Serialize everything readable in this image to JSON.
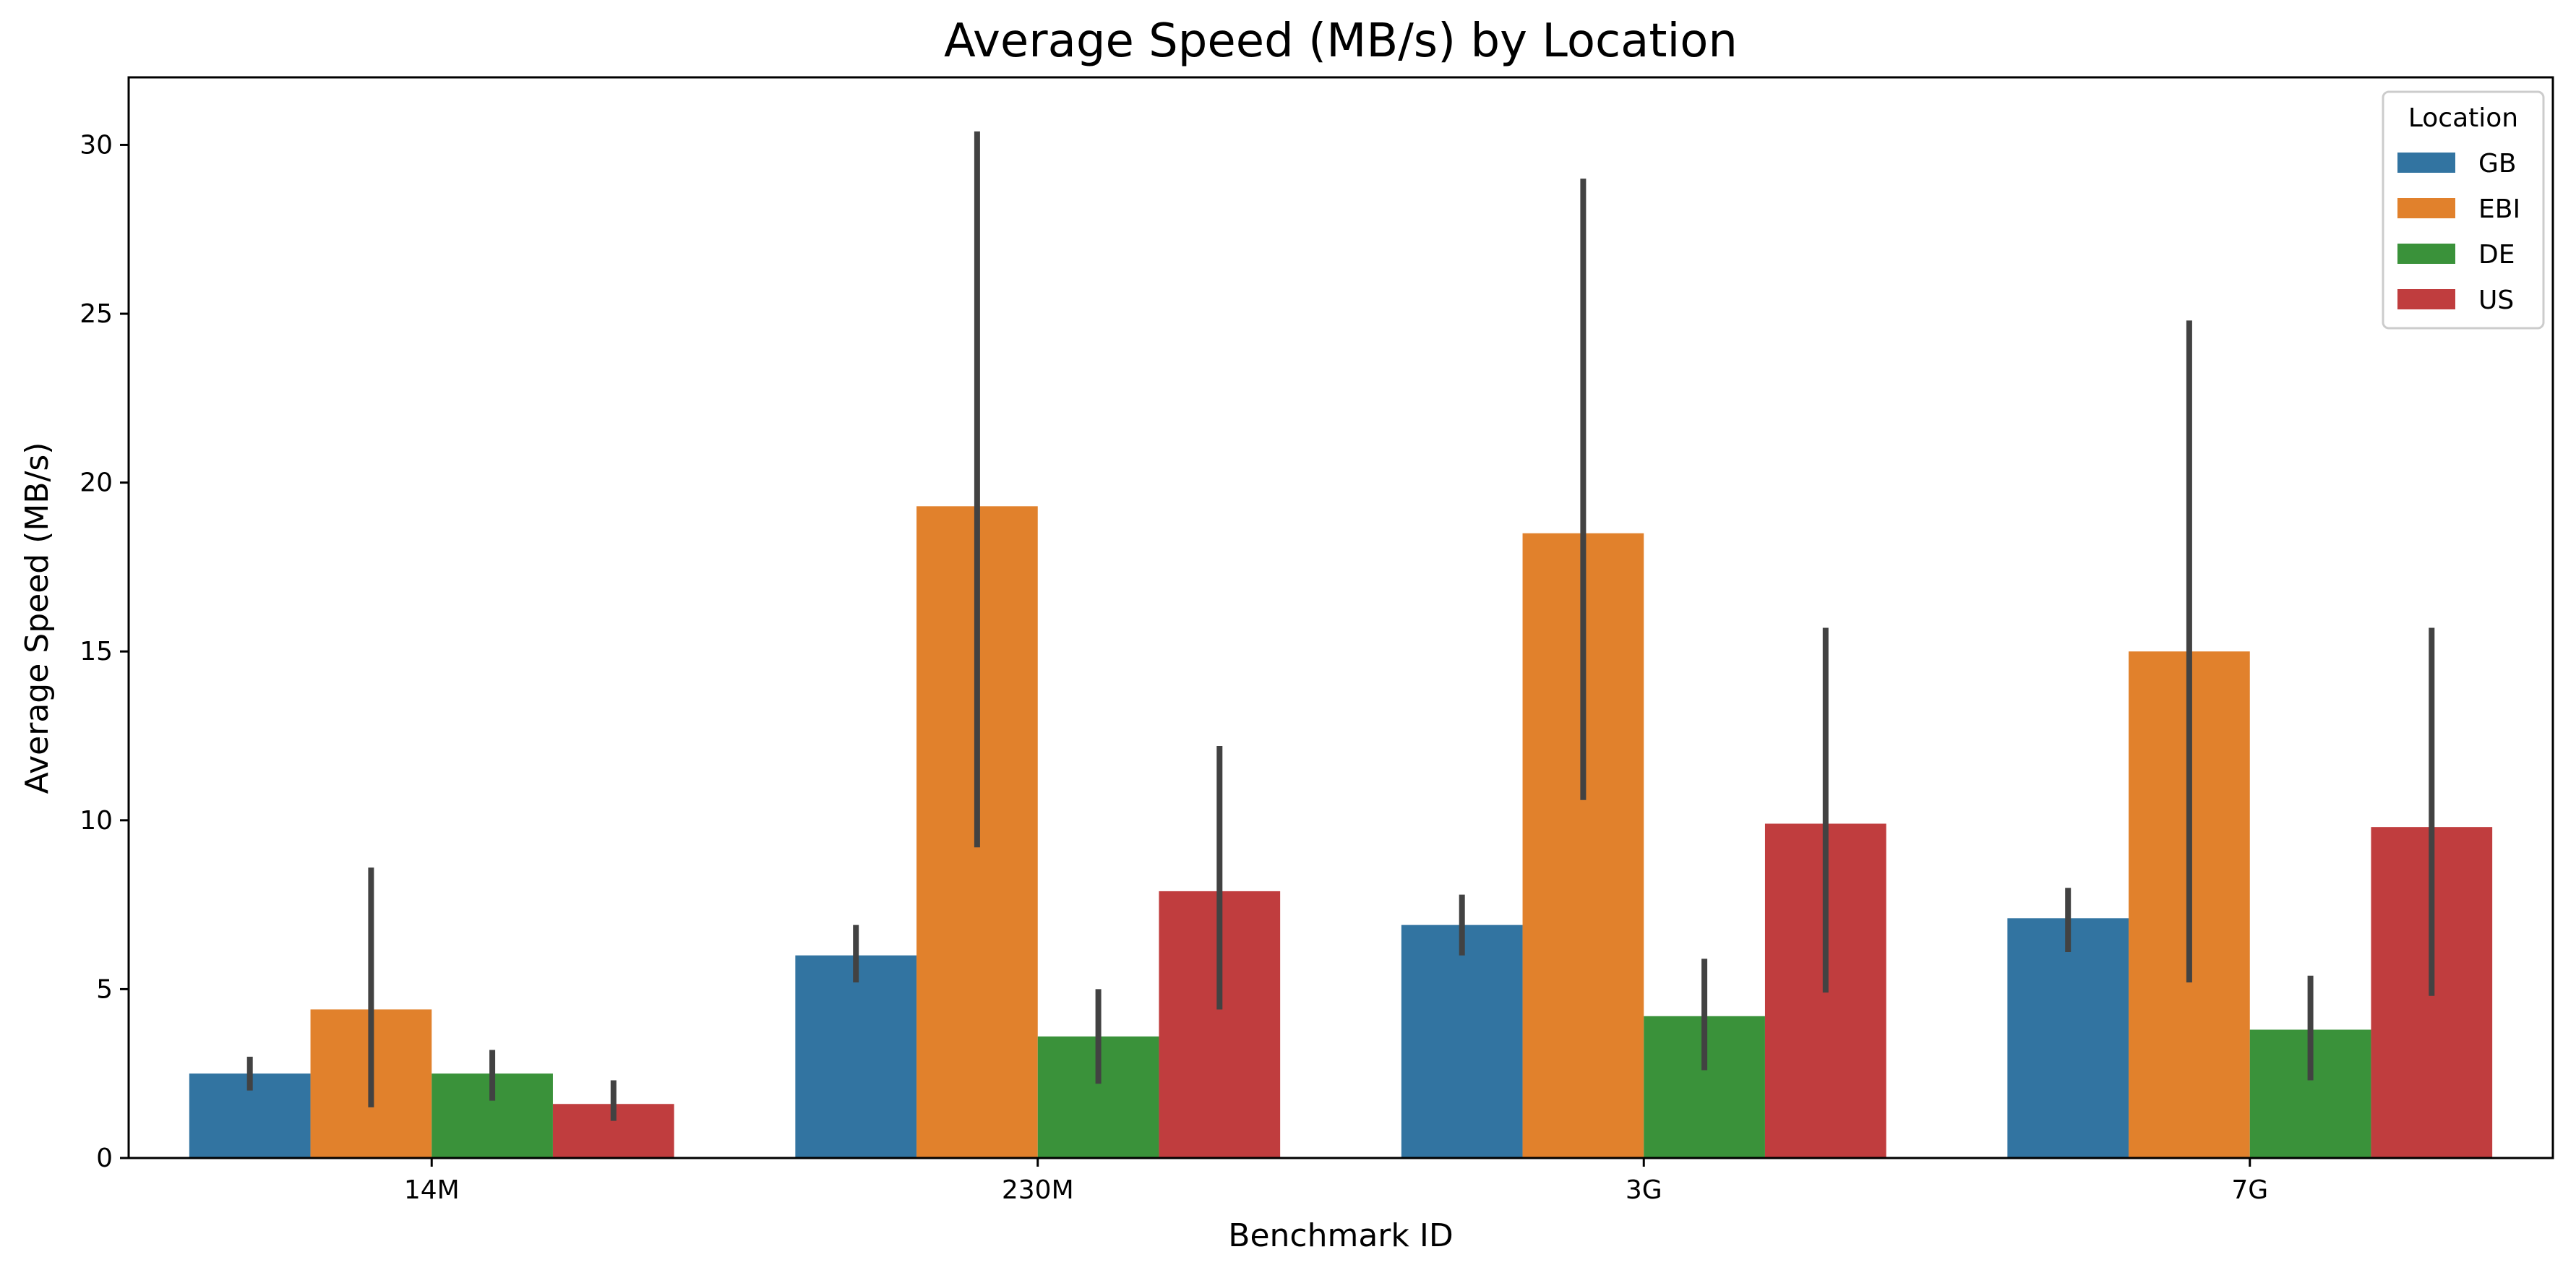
{
  "chart_data": {
    "type": "bar",
    "title": "Average Speed (MB/s) by Location",
    "xlabel": "Benchmark ID",
    "ylabel": "Average Speed (MB/s)",
    "categories": [
      "14M",
      "230M",
      "3G",
      "7G"
    ],
    "ylim": [
      0,
      32
    ],
    "yticks": [
      0,
      5,
      10,
      15,
      20,
      25,
      30
    ],
    "grid": false,
    "legend": {
      "title": "Location",
      "placement": "top-right"
    },
    "series": [
      {
        "name": "GB",
        "color": "#3274a1",
        "values": [
          2.5,
          6.0,
          6.9,
          7.1
        ],
        "err_low": [
          2.0,
          5.2,
          6.0,
          6.1
        ],
        "err_high": [
          3.0,
          6.9,
          7.8,
          8.0
        ]
      },
      {
        "name": "EBI",
        "color": "#e1812c",
        "values": [
          4.4,
          19.3,
          18.5,
          15.0
        ],
        "err_low": [
          1.5,
          9.2,
          10.6,
          5.2
        ],
        "err_high": [
          8.6,
          30.4,
          29.0,
          24.8
        ]
      },
      {
        "name": "DE",
        "color": "#3a923a",
        "values": [
          2.5,
          3.6,
          4.2,
          3.8
        ],
        "err_low": [
          1.7,
          2.2,
          2.6,
          2.3
        ],
        "err_high": [
          3.2,
          5.0,
          5.9,
          5.4
        ]
      },
      {
        "name": "US",
        "color": "#c03d3e",
        "values": [
          1.6,
          7.9,
          9.9,
          9.8
        ],
        "err_low": [
          1.1,
          4.4,
          4.9,
          4.8
        ],
        "err_high": [
          2.3,
          12.2,
          15.7,
          15.7
        ]
      }
    ]
  }
}
